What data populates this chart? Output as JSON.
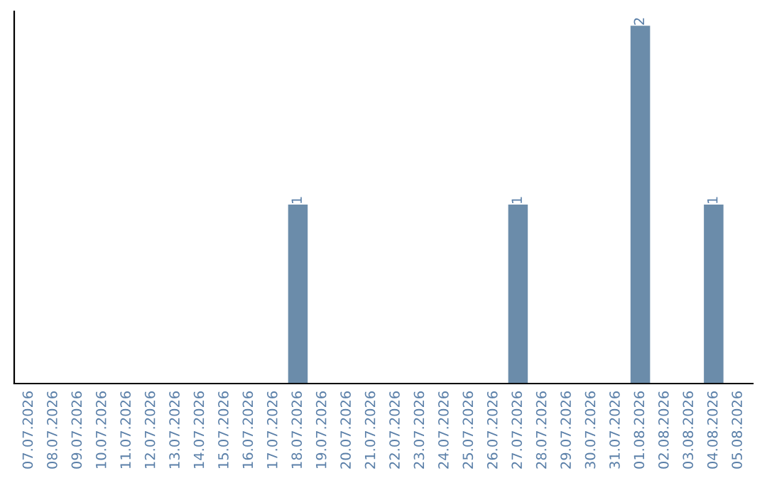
{
  "chart_data": {
    "type": "bar",
    "categories": [
      "07.07.2026",
      "08.07.2026",
      "09.07.2026",
      "10.07.2026",
      "11.07.2026",
      "12.07.2026",
      "13.07.2026",
      "14.07.2026",
      "15.07.2026",
      "16.07.2026",
      "17.07.2026",
      "18.07.2026",
      "19.07.2026",
      "20.07.2026",
      "21.07.2026",
      "22.07.2026",
      "23.07.2026",
      "24.07.2026",
      "25.07.2026",
      "26.07.2026",
      "27.07.2026",
      "28.07.2026",
      "29.07.2026",
      "30.07.2026",
      "31.07.2026",
      "01.08.2026",
      "02.08.2026",
      "03.08.2026",
      "04.08.2026",
      "05.08.2026"
    ],
    "values": [
      0,
      0,
      0,
      0,
      0,
      0,
      0,
      0,
      0,
      0,
      0,
      1,
      0,
      0,
      0,
      0,
      0,
      0,
      0,
      0,
      1,
      0,
      0,
      0,
      0,
      2,
      0,
      0,
      1,
      0
    ],
    "value_labels": [
      null,
      null,
      null,
      null,
      null,
      null,
      null,
      null,
      null,
      null,
      null,
      "1",
      null,
      null,
      null,
      null,
      null,
      null,
      null,
      null,
      "1",
      null,
      null,
      null,
      null,
      "2",
      null,
      null,
      "1",
      null
    ],
    "color": "#6b8caa",
    "ylim": [
      0,
      2.08
    ],
    "tick_labels": "x",
    "grid": false,
    "legend": false
  }
}
